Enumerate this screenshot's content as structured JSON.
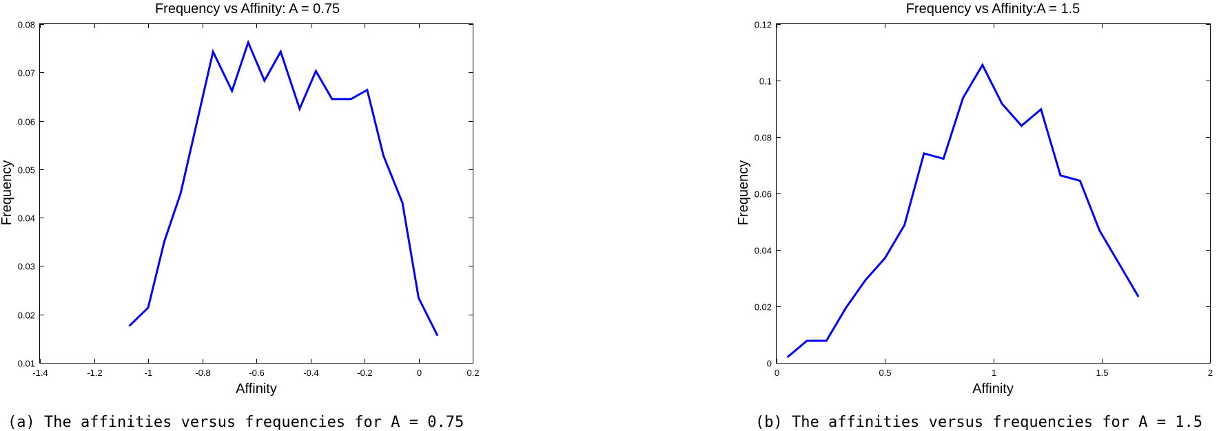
{
  "chart_data": [
    {
      "type": "line",
      "title": "Frequency vs Affinity: A = 0.75",
      "xlabel": "Affinity",
      "ylabel": "Frequency",
      "xlim": [
        -1.4,
        0.2
      ],
      "ylim": [
        0.01,
        0.08
      ],
      "xticks": [
        -1.4,
        -1.2,
        -1,
        -0.8,
        -0.6,
        -0.4,
        -0.2,
        0,
        0.2
      ],
      "xtick_labels": [
        "-1.4",
        "-1.2",
        "-1",
        "-0.8",
        "-0.6",
        "-0.4",
        "-0.2",
        "0",
        "0.2"
      ],
      "yticks": [
        0.01,
        0.02,
        0.03,
        0.04,
        0.05,
        0.06,
        0.07,
        0.08
      ],
      "ytick_labels": [
        "0.01",
        "0.02",
        "0.03",
        "0.04",
        "0.05",
        "0.06",
        "0.07",
        "0.08"
      ],
      "grid": false,
      "caption": "(a) The affinities versus frequencies for A = 0.75",
      "series": [
        {
          "color": "#0000ff",
          "x": [
            -1.07,
            -1.0,
            -0.94,
            -0.88,
            -0.82,
            -0.76,
            -0.69,
            -0.63,
            -0.57,
            -0.51,
            -0.44,
            -0.38,
            -0.32,
            -0.25,
            -0.19,
            -0.13,
            -0.06,
            0.0,
            0.07
          ],
          "y": [
            0.0176,
            0.0214,
            0.0351,
            0.045,
            0.0596,
            0.0743,
            0.0662,
            0.0762,
            0.0683,
            0.0743,
            0.0625,
            0.0703,
            0.0645,
            0.0645,
            0.0664,
            0.0528,
            0.0431,
            0.0234,
            0.0156
          ]
        }
      ]
    },
    {
      "type": "line",
      "title": "Frequency vs Affinity:A = 1.5",
      "xlabel": "Affinity",
      "ylabel": "Frequency",
      "xlim": [
        0,
        2
      ],
      "ylim": [
        0,
        0.12
      ],
      "xticks": [
        0,
        0.5,
        1,
        1.5,
        2
      ],
      "xtick_labels": [
        "0",
        "0.5",
        "1",
        "1.5",
        "2"
      ],
      "yticks": [
        0,
        0.02,
        0.04,
        0.06,
        0.08,
        0.1,
        0.12
      ],
      "ytick_labels": [
        "0",
        "0.02",
        "0.04",
        "0.06",
        "0.08",
        "0.1",
        "0.12"
      ],
      "grid": false,
      "caption": "(b) The affinities versus frequencies for A = 1.5",
      "series": [
        {
          "color": "#0000ff",
          "x": [
            0.05,
            0.14,
            0.23,
            0.32,
            0.41,
            0.5,
            0.59,
            0.68,
            0.77,
            0.86,
            0.95,
            1.04,
            1.13,
            1.22,
            1.31,
            1.4,
            1.49,
            1.58,
            1.67
          ],
          "y": [
            0.002,
            0.0078,
            0.0078,
            0.0195,
            0.0293,
            0.0371,
            0.0488,
            0.0742,
            0.0723,
            0.0938,
            0.1055,
            0.0918,
            0.084,
            0.0898,
            0.0664,
            0.0645,
            0.0469,
            0.0352,
            0.0234
          ]
        }
      ]
    }
  ]
}
